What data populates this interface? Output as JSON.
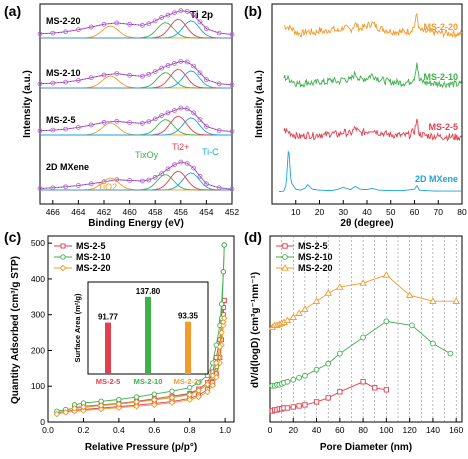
{
  "colors": {
    "ms25": "#e0404f",
    "ms210": "#3fb04a",
    "ms220": "#f39b2c",
    "mxene": "#1fa3d8",
    "fit": "#b860d8"
  },
  "chart_data": [
    {
      "panel": "(a)",
      "type": "line",
      "title": "Ti 2p",
      "xlabel": "Binding Energy (eV)",
      "ylabel": "Intensity (a.u.)",
      "x_reversed": true,
      "xlim": [
        467,
        452
      ],
      "xticks": [
        466,
        464,
        462,
        460,
        458,
        456,
        454,
        452
      ],
      "stack_labels": [
        "MS-2-20",
        "MS-2-10",
        "MS-2-5",
        "2D MXene"
      ],
      "component_labels": [
        "TiO2",
        "TixOy",
        "Ti2+",
        "Ti-C"
      ],
      "series": [
        {
          "name": "MS-2-20",
          "x": [
            467,
            466,
            465,
            464,
            463,
            462,
            461,
            460,
            459,
            458.5,
            458,
            457.5,
            457,
            456.5,
            456,
            455.5,
            455,
            454.5,
            454,
            453,
            452
          ],
          "y": [
            0.3,
            0.32,
            0.36,
            0.42,
            0.5,
            0.58,
            0.62,
            0.58,
            0.55,
            0.6,
            0.68,
            0.78,
            0.85,
            0.92,
            0.98,
            0.96,
            0.85,
            0.65,
            0.45,
            0.32,
            0.28
          ]
        },
        {
          "name": "MS-2-10",
          "x": [
            467,
            466,
            465,
            464,
            463,
            462,
            461,
            460,
            459,
            458.5,
            458,
            457.5,
            457,
            456.5,
            456,
            455.5,
            455,
            454.5,
            454,
            453,
            452
          ],
          "y": [
            0.3,
            0.32,
            0.35,
            0.4,
            0.48,
            0.56,
            0.6,
            0.55,
            0.52,
            0.58,
            0.66,
            0.76,
            0.84,
            0.9,
            0.96,
            0.94,
            0.82,
            0.62,
            0.42,
            0.3,
            0.27
          ]
        },
        {
          "name": "MS-2-5",
          "x": [
            467,
            466,
            465,
            464,
            463,
            462,
            461,
            460,
            459,
            458.5,
            458,
            457.5,
            457,
            456.5,
            456,
            455.5,
            455,
            454.5,
            454,
            453,
            452
          ],
          "y": [
            0.3,
            0.32,
            0.35,
            0.4,
            0.47,
            0.55,
            0.58,
            0.54,
            0.52,
            0.57,
            0.65,
            0.75,
            0.83,
            0.9,
            0.97,
            0.95,
            0.83,
            0.63,
            0.43,
            0.31,
            0.28
          ]
        },
        {
          "name": "2D MXene",
          "x": [
            467,
            466,
            465,
            464,
            463,
            462,
            461,
            460,
            459,
            458.5,
            458,
            457.5,
            457,
            456.5,
            456,
            455.5,
            455,
            454.5,
            454,
            453,
            452
          ],
          "y": [
            0.22,
            0.24,
            0.27,
            0.31,
            0.36,
            0.42,
            0.48,
            0.46,
            0.44,
            0.47,
            0.55,
            0.66,
            0.8,
            0.92,
            1.0,
            0.96,
            0.82,
            0.58,
            0.36,
            0.24,
            0.2
          ]
        }
      ]
    },
    {
      "panel": "(b)",
      "type": "line",
      "xlabel": "2θ (degree)",
      "ylabel": "Intensity (a.u.)",
      "xlim": [
        0,
        80
      ],
      "xticks": [
        10,
        20,
        30,
        40,
        50,
        60,
        70,
        80
      ],
      "series": [
        {
          "name": "MS-2-20",
          "x": [
            5,
            8,
            10,
            12,
            15,
            18,
            20,
            22,
            25,
            28,
            30,
            33,
            35,
            37,
            40,
            42,
            45,
            48,
            50,
            55,
            58,
            60,
            61,
            62,
            65,
            70,
            75,
            80
          ],
          "y": [
            0.55,
            0.5,
            0.4,
            0.35,
            0.42,
            0.38,
            0.45,
            0.4,
            0.48,
            0.42,
            0.52,
            0.45,
            0.6,
            0.48,
            0.55,
            0.62,
            0.5,
            0.45,
            0.42,
            0.4,
            0.42,
            0.55,
            0.85,
            0.45,
            0.4,
            0.38,
            0.36,
            0.35
          ]
        },
        {
          "name": "MS-2-10",
          "x": [
            5,
            8,
            10,
            12,
            15,
            18,
            20,
            22,
            25,
            28,
            30,
            33,
            35,
            37,
            40,
            42,
            45,
            48,
            50,
            55,
            58,
            60,
            61,
            62,
            65,
            70,
            75,
            80
          ],
          "y": [
            0.52,
            0.45,
            0.38,
            0.34,
            0.4,
            0.36,
            0.42,
            0.38,
            0.45,
            0.4,
            0.48,
            0.44,
            0.62,
            0.46,
            0.5,
            0.58,
            0.48,
            0.42,
            0.4,
            0.38,
            0.4,
            0.52,
            0.9,
            0.44,
            0.38,
            0.36,
            0.35,
            0.34
          ]
        },
        {
          "name": "MS-2-5",
          "x": [
            5,
            8,
            10,
            12,
            15,
            18,
            20,
            22,
            25,
            28,
            30,
            33,
            35,
            37,
            40,
            42,
            45,
            48,
            50,
            55,
            58,
            60,
            61,
            62,
            65,
            70,
            75,
            80
          ],
          "y": [
            0.5,
            0.42,
            0.36,
            0.33,
            0.38,
            0.35,
            0.4,
            0.36,
            0.42,
            0.38,
            0.45,
            0.4,
            0.55,
            0.42,
            0.46,
            0.52,
            0.44,
            0.4,
            0.38,
            0.36,
            0.38,
            0.48,
            0.75,
            0.4,
            0.36,
            0.34,
            0.33,
            0.32
          ]
        },
        {
          "name": "2D MXene",
          "x": [
            3,
            5,
            6,
            7,
            8,
            10,
            12,
            14,
            15,
            17,
            20,
            25,
            28,
            30,
            33,
            35,
            37,
            40,
            42,
            45,
            50,
            55,
            60,
            61,
            62,
            65,
            70,
            75,
            80
          ],
          "y": [
            0.05,
            0.06,
            0.2,
            1.0,
            0.25,
            0.1,
            0.08,
            0.12,
            0.2,
            0.1,
            0.08,
            0.07,
            0.1,
            0.14,
            0.09,
            0.16,
            0.1,
            0.09,
            0.12,
            0.08,
            0.07,
            0.07,
            0.1,
            0.18,
            0.08,
            0.07,
            0.06,
            0.06,
            0.06
          ]
        }
      ]
    },
    {
      "panel": "(c)",
      "type": "line",
      "xlabel": "Relative Pressure (p/p°)",
      "ylabel": "Quantity Adsorbed (cm³/g STP)",
      "xlim": [
        0,
        1.05
      ],
      "ylim": [
        0,
        520
      ],
      "xticks": [
        0.0,
        0.2,
        0.4,
        0.6,
        0.8,
        1.0
      ],
      "yticks": [
        0,
        100,
        200,
        300,
        400,
        500
      ],
      "legend": "top-left",
      "series": [
        {
          "name": "MS-2-5",
          "x": [
            0.05,
            0.1,
            0.15,
            0.2,
            0.3,
            0.4,
            0.5,
            0.6,
            0.7,
            0.8,
            0.85,
            0.9,
            0.93,
            0.95,
            0.97,
            0.98,
            0.99,
            0.995
          ],
          "y": [
            26,
            30,
            33,
            35,
            39,
            43,
            47,
            52,
            57,
            66,
            75,
            90,
            110,
            135,
            180,
            230,
            300,
            340
          ],
          "desorb": [
            40,
            44,
            48,
            52,
            58,
            65,
            72,
            80,
            92,
            110,
            140,
            180,
            230,
            280,
            320,
            340
          ]
        },
        {
          "name": "MS-2-10",
          "x": [
            0.05,
            0.1,
            0.15,
            0.2,
            0.3,
            0.4,
            0.5,
            0.6,
            0.7,
            0.8,
            0.85,
            0.9,
            0.93,
            0.95,
            0.97,
            0.98,
            0.99,
            0.995
          ],
          "y": [
            30,
            35,
            38,
            41,
            46,
            51,
            56,
            62,
            68,
            78,
            88,
            105,
            125,
            155,
            210,
            290,
            420,
            495
          ],
          "desorb": [
            48,
            53,
            58,
            63,
            70,
            78,
            86,
            96,
            110,
            130,
            165,
            215,
            270,
            330,
            420,
            495
          ]
        },
        {
          "name": "MS-2-20",
          "x": [
            0.05,
            0.1,
            0.15,
            0.2,
            0.3,
            0.4,
            0.5,
            0.6,
            0.7,
            0.8,
            0.85,
            0.9,
            0.93,
            0.95,
            0.97,
            0.98,
            0.99,
            0.995
          ],
          "y": [
            22,
            27,
            30,
            32,
            36,
            40,
            44,
            48,
            54,
            62,
            70,
            84,
            102,
            125,
            165,
            215,
            270,
            290
          ],
          "desorb": [
            38,
            42,
            46,
            50,
            56,
            62,
            68,
            76,
            88,
            105,
            130,
            165,
            210,
            250,
            280,
            290
          ]
        }
      ],
      "inset": {
        "type": "bar",
        "ylabel": "Surface Area (m²/g)",
        "categories": [
          "MS-2-5",
          "MS-2-10",
          "MS-2-20"
        ],
        "values": [
          91.77,
          137.8,
          93.35
        ],
        "labels": [
          "91.77",
          "137.80",
          "93.35"
        ],
        "ylim": [
          0,
          150
        ]
      }
    },
    {
      "panel": "(d)",
      "type": "line",
      "xlabel": "Pore Diameter (nm)",
      "ylabel": "dV/d(logD) (cm³g⁻¹nm⁻¹)",
      "xlim": [
        0,
        165
      ],
      "xticks": [
        0,
        20,
        40,
        60,
        80,
        100,
        120,
        140,
        160
      ],
      "legend": "top-left",
      "series": [
        {
          "name": "MS-2-5",
          "x": [
            2,
            4,
            6,
            8,
            10,
            12,
            15,
            20,
            25,
            30,
            40,
            50,
            60,
            80,
            90,
            100
          ],
          "y": [
            0.05,
            0.06,
            0.06,
            0.07,
            0.07,
            0.08,
            0.08,
            0.09,
            0.1,
            0.11,
            0.14,
            0.18,
            0.24,
            0.34,
            0.28,
            0.26
          ]
        },
        {
          "name": "MS-2-10",
          "x": [
            2,
            4,
            6,
            8,
            10,
            12,
            15,
            20,
            25,
            30,
            40,
            50,
            60,
            80,
            100,
            122,
            140,
            155
          ],
          "y": [
            0.3,
            0.3,
            0.31,
            0.31,
            0.32,
            0.33,
            0.34,
            0.36,
            0.38,
            0.4,
            0.46,
            0.52,
            0.62,
            0.78,
            0.94,
            0.9,
            0.72,
            0.62
          ]
        },
        {
          "name": "MS-2-20",
          "x": [
            2,
            4,
            6,
            8,
            10,
            12,
            15,
            20,
            25,
            30,
            40,
            50,
            60,
            80,
            100,
            120,
            140,
            160
          ],
          "y": [
            0.88,
            0.9,
            0.9,
            0.91,
            0.92,
            0.93,
            0.95,
            0.98,
            1.02,
            1.06,
            1.14,
            1.22,
            1.28,
            1.32,
            1.4,
            1.2,
            1.14,
            1.14
          ]
        }
      ]
    }
  ]
}
